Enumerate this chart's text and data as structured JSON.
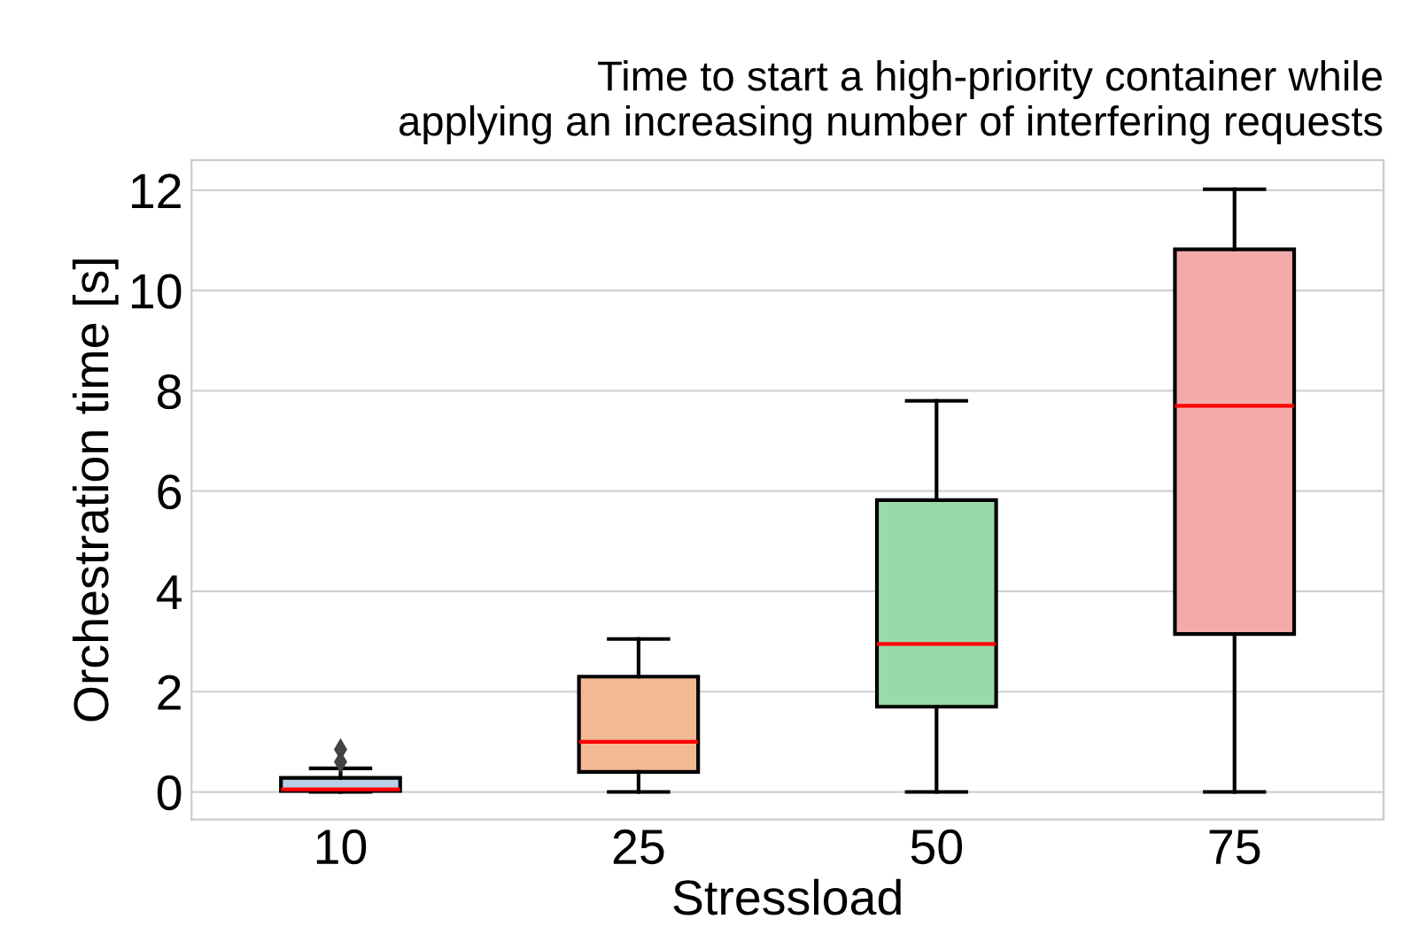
{
  "chart_data": {
    "type": "box",
    "title": "Time to start a high-priority container while\napplying an increasing number of interfering requests",
    "xlabel": "Stressload",
    "ylabel": "Orchestration time [s]",
    "categories": [
      "10",
      "25",
      "50",
      "75"
    ],
    "colors": [
      "#b7cfe7",
      "#f2b994",
      "#98dba8",
      "#f2abaa"
    ],
    "boxes": [
      {
        "low": 0,
        "q1": 0.02,
        "median": 0.05,
        "q3": 0.28,
        "high": 0.47,
        "outliers": [
          0.6,
          0.85
        ]
      },
      {
        "low": 0,
        "q1": 0.4,
        "median": 1.0,
        "q3": 2.3,
        "high": 3.05
      },
      {
        "low": 0,
        "q1": 1.7,
        "median": 2.95,
        "q3": 5.82,
        "high": 7.8
      },
      {
        "low": 0,
        "q1": 3.15,
        "median": 7.7,
        "q3": 10.82,
        "high": 12.02
      }
    ],
    "ylim": [
      -0.55,
      12.6
    ],
    "yticks": [
      0,
      2,
      4,
      6,
      8,
      10,
      12
    ],
    "grid": "y"
  }
}
